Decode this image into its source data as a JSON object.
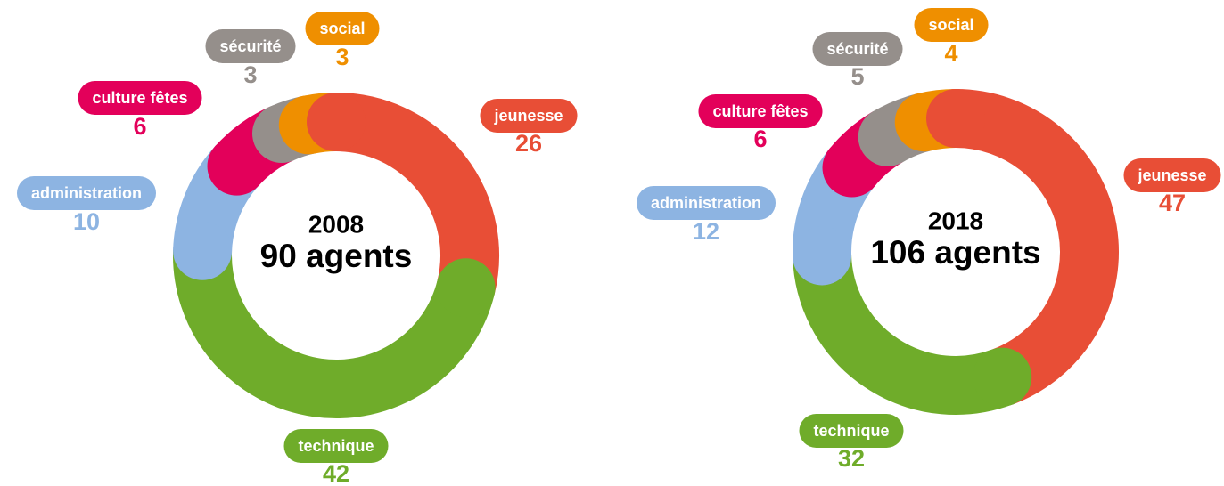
{
  "chart_data": [
    {
      "type": "donut",
      "title": "2008",
      "subtitle": "90 agents",
      "categories": [
        "jeunesse",
        "technique",
        "administration",
        "culture fêtes",
        "sécurité",
        "social"
      ],
      "values": [
        26,
        42,
        10,
        6,
        3,
        3
      ],
      "colors": [
        "#e84e36",
        "#6fac2a",
        "#8db4e2",
        "#e3005a",
        "#958f8b",
        "#ef8f00"
      ]
    },
    {
      "type": "donut",
      "title": "2018",
      "subtitle": "106 agents",
      "categories": [
        "jeunesse",
        "technique",
        "administration",
        "culture fêtes",
        "sécurité",
        "social"
      ],
      "values": [
        47,
        32,
        12,
        6,
        5,
        4
      ],
      "colors": [
        "#e84e36",
        "#6fac2a",
        "#8db4e2",
        "#e3005a",
        "#958f8b",
        "#ef8f00"
      ]
    }
  ]
}
